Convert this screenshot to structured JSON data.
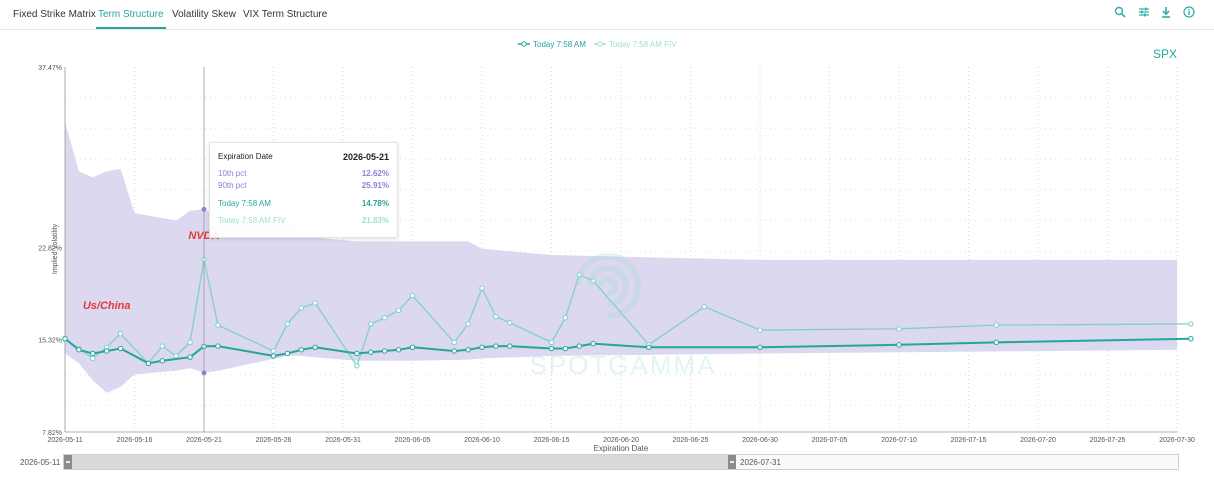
{
  "tabs": [
    {
      "label": "Fixed Strike Matrix",
      "active": false
    },
    {
      "label": "Term Structure",
      "active": true
    },
    {
      "label": "Volatility Skew",
      "active": false
    },
    {
      "label": "VIX Term Structure",
      "active": false
    }
  ],
  "toolbar": {
    "icons": [
      "search-icon",
      "settings-sliders-icon",
      "download-icon",
      "info-icon"
    ]
  },
  "ticker": "SPX",
  "watermark_text": "SPOTGAMMA",
  "annotations": [
    {
      "text": "NVDA",
      "x": "2026-05-21",
      "y": 23.5,
      "color": "#e53935"
    },
    {
      "text": "Us/China",
      "x": "2026-05-14",
      "y": 17.8,
      "color": "#e53935"
    }
  ],
  "tooltip": {
    "header_label": "Expiration Date",
    "header_value": "2026-05-21",
    "rows": [
      {
        "label": "10th pct",
        "value": "12.62%",
        "color": "#8e7fd6"
      },
      {
        "label": "90th pct",
        "value": "25.91%",
        "color": "#8e7fd6"
      },
      {
        "label": "Today 7:58 AM",
        "value": "14.78%",
        "color": "#26a69a"
      },
      {
        "label": "Today 7:58 AM FIV",
        "value": "21.83%",
        "color": "#9fded6"
      }
    ]
  },
  "range_selector": {
    "start": "2026-05-11",
    "end": "2026-07-31"
  },
  "colors": {
    "today": "#26a69a",
    "fiv": "#7fd1c7",
    "band": "#d9d6ee",
    "accent": "#26a69a"
  },
  "chart_data": {
    "type": "line",
    "xlabel": "Expiration Date",
    "ylabel": "Implied Volatility",
    "x_domain": [
      "2026-05-11",
      "2026-07-30"
    ],
    "ylim": [
      7.82,
      37.47
    ],
    "y_ticks": [
      "7.82%",
      "15.32%",
      "22.82%",
      "37.47%"
    ],
    "y_tick_values": [
      7.82,
      15.32,
      22.82,
      37.47
    ],
    "x_ticks": [
      "2026-05-11",
      "2026-05-16",
      "2026-05-21",
      "2026-05-26",
      "2026-05-31",
      "2026-06-05",
      "2026-06-10",
      "2026-06-15",
      "2026-06-20",
      "2026-06-25",
      "2026-06-30",
      "2026-07-05",
      "2026-07-10",
      "2026-07-15",
      "2026-07-20",
      "2026-07-25",
      "2026-07-30"
    ],
    "grid": true,
    "legend": "top-center",
    "crosshair_x": "2026-05-21",
    "band": {
      "name": "10th–90th pct",
      "x": [
        "2026-05-11",
        "2026-05-12",
        "2026-05-13",
        "2026-05-14",
        "2026-05-15",
        "2026-05-16",
        "2026-05-19",
        "2026-05-20",
        "2026-05-21",
        "2026-05-22",
        "2026-05-27",
        "2026-05-28",
        "2026-05-29",
        "2026-06-01",
        "2026-06-05",
        "2026-06-09",
        "2026-06-10",
        "2026-06-15",
        "2026-06-30",
        "2026-07-30"
      ],
      "upper": [
        33.0,
        29.0,
        28.5,
        29.0,
        29.2,
        25.6,
        25.0,
        25.8,
        25.91,
        25.3,
        24.7,
        23.8,
        23.6,
        23.3,
        23.3,
        23.3,
        22.7,
        22.2,
        21.8,
        21.8
      ],
      "lower": [
        14.2,
        13.4,
        12.0,
        11.0,
        11.5,
        12.5,
        12.8,
        13.0,
        12.62,
        12.8,
        14.0,
        14.0,
        13.9,
        13.6,
        13.6,
        13.7,
        13.8,
        14.0,
        14.2,
        14.5
      ]
    },
    "series": [
      {
        "name": "Today 7:58 AM",
        "color": "#26a69a",
        "x": [
          "2026-05-11",
          "2026-05-12",
          "2026-05-13",
          "2026-05-14",
          "2026-05-15",
          "2026-05-17",
          "2026-05-18",
          "2026-05-20",
          "2026-05-21",
          "2026-05-22",
          "2026-05-26",
          "2026-05-27",
          "2026-05-28",
          "2026-05-29",
          "2026-06-01",
          "2026-06-02",
          "2026-06-03",
          "2026-06-04",
          "2026-06-05",
          "2026-06-08",
          "2026-06-09",
          "2026-06-10",
          "2026-06-11",
          "2026-06-12",
          "2026-06-15",
          "2026-06-16",
          "2026-06-17",
          "2026-06-18",
          "2026-06-22",
          "2026-06-30",
          "2026-07-10",
          "2026-07-17",
          "2026-07-31"
        ],
        "values": [
          15.4,
          14.5,
          14.2,
          14.4,
          14.6,
          13.4,
          13.6,
          13.9,
          14.78,
          14.8,
          14.0,
          14.2,
          14.5,
          14.7,
          14.2,
          14.3,
          14.4,
          14.5,
          14.7,
          14.4,
          14.5,
          14.7,
          14.8,
          14.8,
          14.6,
          14.6,
          14.8,
          15.0,
          14.7,
          14.7,
          14.9,
          15.1,
          15.4
        ]
      },
      {
        "name": "Today 7:58 AM FIV",
        "color": "#7fd1c7",
        "x": [
          "2026-05-11",
          "2026-05-12",
          "2026-05-13",
          "2026-05-14",
          "2026-05-15",
          "2026-05-17",
          "2026-05-18",
          "2026-05-19",
          "2026-05-20",
          "2026-05-21",
          "2026-05-22",
          "2026-05-26",
          "2026-05-27",
          "2026-05-28",
          "2026-05-29",
          "2026-06-01",
          "2026-06-02",
          "2026-06-03",
          "2026-06-04",
          "2026-06-05",
          "2026-06-08",
          "2026-06-09",
          "2026-06-10",
          "2026-06-11",
          "2026-06-12",
          "2026-06-15",
          "2026-06-16",
          "2026-06-17",
          "2026-06-18",
          "2026-06-22",
          "2026-06-26",
          "2026-06-30",
          "2026-07-10",
          "2026-07-17",
          "2026-07-31"
        ],
        "values": [
          15.4,
          14.6,
          13.8,
          14.7,
          15.8,
          13.4,
          14.8,
          14.0,
          15.1,
          21.83,
          16.5,
          14.4,
          16.6,
          17.9,
          18.3,
          13.2,
          16.6,
          17.1,
          17.7,
          18.9,
          15.1,
          16.6,
          19.5,
          17.2,
          16.7,
          15.1,
          17.1,
          20.6,
          20.1,
          14.9,
          18.0,
          16.1,
          16.2,
          16.5,
          16.6
        ]
      }
    ]
  }
}
